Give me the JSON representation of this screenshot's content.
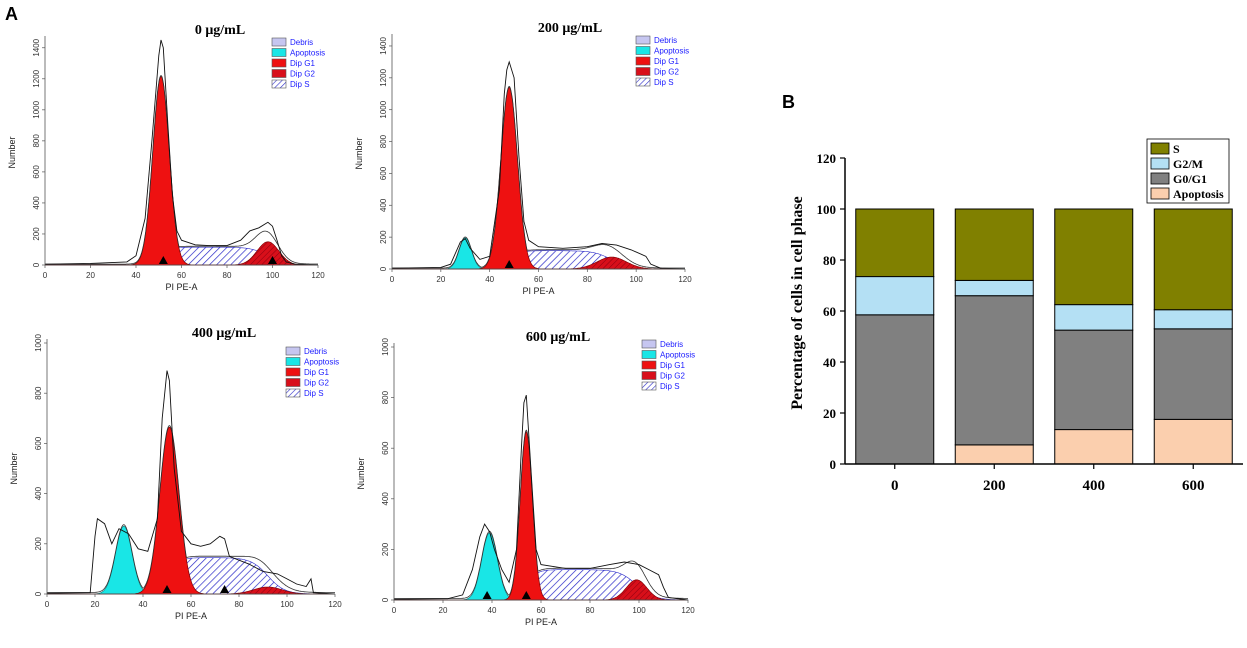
{
  "panel_labels": {
    "a": "A",
    "b": "B"
  },
  "colors": {
    "debris": "#c6c6f0",
    "apoptosis": "#19e6e6",
    "dip_g1": "#ee1111",
    "dip_g2": "#d80f1a",
    "dip_s_hatch": "#2a2ac8",
    "s": "#808000",
    "g2m": "#b4e0f4",
    "g0g1": "#808080",
    "apoptosis_bar": "#fbcfae"
  },
  "chart_data": [
    {
      "id": "h0",
      "type": "area",
      "title": "0 μg/mL",
      "xlabel": "PI PE-A",
      "ylabel": "Number",
      "xlim": [
        0,
        120
      ],
      "ylim": [
        0,
        1450
      ],
      "xticks": [
        0,
        20,
        40,
        60,
        80,
        100,
        120
      ],
      "yticks": [
        0,
        200,
        400,
        600,
        800,
        1000,
        1200,
        1400
      ],
      "legend": [
        "Debris",
        "Apoptosis",
        "Dip G1",
        "Dip G2",
        "Dip S"
      ],
      "markers": [
        52,
        100
      ],
      "apoptosis": null,
      "g1": {
        "mu": 51,
        "sigma": 3.6,
        "amp": 1215
      },
      "g2": {
        "mu": 98,
        "sigma": 4.8,
        "amp": 150
      },
      "s": {
        "from": 51,
        "to": 98,
        "amp": 115
      },
      "raw_line": [
        [
          0,
          5
        ],
        [
          20,
          10
        ],
        [
          36,
          20
        ],
        [
          40,
          60
        ],
        [
          44,
          300
        ],
        [
          47,
          800
        ],
        [
          50,
          1350
        ],
        [
          51,
          1450
        ],
        [
          52,
          1400
        ],
        [
          54,
          900
        ],
        [
          56,
          450
        ],
        [
          58,
          220
        ],
        [
          60,
          160
        ],
        [
          66,
          130
        ],
        [
          72,
          125
        ],
        [
          80,
          125
        ],
        [
          86,
          160
        ],
        [
          90,
          220
        ],
        [
          94,
          240
        ],
        [
          98,
          275
        ],
        [
          100,
          250
        ],
        [
          102,
          160
        ],
        [
          104,
          60
        ],
        [
          106,
          20
        ],
        [
          110,
          5
        ],
        [
          120,
          0
        ]
      ]
    },
    {
      "id": "h200",
      "type": "area",
      "title": "200 μg/mL",
      "xlabel": "PI PE-A",
      "ylabel": "Number",
      "xlim": [
        0,
        120
      ],
      "ylim": [
        0,
        1450
      ],
      "xticks": [
        0,
        20,
        40,
        60,
        80,
        100,
        120
      ],
      "yticks": [
        0,
        200,
        400,
        600,
        800,
        1000,
        1200,
        1400
      ],
      "legend": [
        "Debris",
        "Apoptosis",
        "Dip G1",
        "Dip G2",
        "Dip S"
      ],
      "markers": [
        48
      ],
      "apoptosis": {
        "mu": 30,
        "sigma": 2.5,
        "amp": 195
      },
      "g1": {
        "mu": 48,
        "sigma": 3.4,
        "amp": 1140
      },
      "g2": {
        "mu": 90,
        "sigma": 6.0,
        "amp": 75
      },
      "s": {
        "from": 48,
        "to": 90,
        "amp": 115
      },
      "raw_line": [
        [
          0,
          5
        ],
        [
          20,
          10
        ],
        [
          24,
          30
        ],
        [
          28,
          170
        ],
        [
          30,
          190
        ],
        [
          32,
          130
        ],
        [
          36,
          60
        ],
        [
          40,
          80
        ],
        [
          44,
          500
        ],
        [
          46,
          1100
        ],
        [
          47,
          1250
        ],
        [
          48,
          1300
        ],
        [
          50,
          1200
        ],
        [
          52,
          700
        ],
        [
          54,
          300
        ],
        [
          56,
          180
        ],
        [
          60,
          140
        ],
        [
          70,
          130
        ],
        [
          80,
          140
        ],
        [
          86,
          160
        ],
        [
          92,
          150
        ],
        [
          98,
          120
        ],
        [
          104,
          80
        ],
        [
          106,
          30
        ],
        [
          110,
          5
        ],
        [
          120,
          0
        ]
      ]
    },
    {
      "id": "h400",
      "type": "area",
      "title": "400 μg/mL",
      "xlabel": "PI PE-A",
      "ylabel": "Number",
      "xlim": [
        0,
        120
      ],
      "ylim": [
        0,
        1000
      ],
      "xticks": [
        0,
        20,
        40,
        60,
        80,
        100,
        120
      ],
      "yticks": [
        0,
        200,
        400,
        600,
        800,
        1000
      ],
      "legend": [
        "Debris",
        "Apoptosis",
        "Dip G1",
        "Dip G2",
        "Dip S"
      ],
      "markers": [
        50,
        74
      ],
      "apoptosis": {
        "mu": 32,
        "sigma": 3.4,
        "amp": 270
      },
      "g1": {
        "mu": 51,
        "sigma": 4.0,
        "amp": 665
      },
      "g2": {
        "mu": 92,
        "sigma": 6.0,
        "amp": 28
      },
      "s": {
        "from": 51,
        "to": 92,
        "amp": 145
      },
      "raw_line": [
        [
          0,
          3
        ],
        [
          18,
          5
        ],
        [
          20,
          230
        ],
        [
          21,
          300
        ],
        [
          24,
          280
        ],
        [
          27,
          200
        ],
        [
          30,
          260
        ],
        [
          34,
          240
        ],
        [
          38,
          180
        ],
        [
          42,
          170
        ],
        [
          46,
          300
        ],
        [
          48,
          700
        ],
        [
          50,
          890
        ],
        [
          51,
          850
        ],
        [
          53,
          500
        ],
        [
          56,
          250
        ],
        [
          60,
          200
        ],
        [
          64,
          190
        ],
        [
          68,
          200
        ],
        [
          72,
          230
        ],
        [
          74,
          220
        ],
        [
          76,
          150
        ],
        [
          84,
          120
        ],
        [
          90,
          90
        ],
        [
          96,
          80
        ],
        [
          100,
          60
        ],
        [
          104,
          40
        ],
        [
          108,
          30
        ],
        [
          110,
          60
        ],
        [
          111,
          5
        ],
        [
          120,
          0
        ]
      ]
    },
    {
      "id": "h600",
      "type": "area",
      "title": "600 μg/mL",
      "xlabel": "PI PE-A",
      "ylabel": "Number",
      "xlim": [
        0,
        120
      ],
      "ylim": [
        0,
        1000
      ],
      "xticks": [
        0,
        20,
        40,
        60,
        80,
        100,
        120
      ],
      "yticks": [
        0,
        200,
        400,
        600,
        800,
        1000
      ],
      "legend": [
        "Debris",
        "Apoptosis",
        "Dip G1",
        "Dip G2",
        "Dip S"
      ],
      "markers": [
        38,
        54
      ],
      "apoptosis": {
        "mu": 39,
        "sigma": 3.2,
        "amp": 265
      },
      "g1": {
        "mu": 54,
        "sigma": 2.5,
        "amp": 665
      },
      "g2": {
        "mu": 99,
        "sigma": 4.2,
        "amp": 80
      },
      "s": {
        "from": 54,
        "to": 99,
        "amp": 120
      },
      "raw_line": [
        [
          0,
          3
        ],
        [
          22,
          5
        ],
        [
          28,
          20
        ],
        [
          32,
          120
        ],
        [
          35,
          250
        ],
        [
          37,
          300
        ],
        [
          39,
          270
        ],
        [
          41,
          200
        ],
        [
          44,
          120
        ],
        [
          47,
          70
        ],
        [
          50,
          200
        ],
        [
          52,
          600
        ],
        [
          53,
          780
        ],
        [
          54,
          810
        ],
        [
          56,
          500
        ],
        [
          58,
          200
        ],
        [
          60,
          140
        ],
        [
          70,
          125
        ],
        [
          80,
          125
        ],
        [
          88,
          140
        ],
        [
          94,
          150
        ],
        [
          100,
          140
        ],
        [
          104,
          120
        ],
        [
          108,
          100
        ],
        [
          110,
          50
        ],
        [
          112,
          10
        ],
        [
          120,
          0
        ]
      ]
    },
    {
      "id": "stacked",
      "type": "bar",
      "title": "",
      "xlabel": "",
      "ylabel": "Percentage of cells in cell phase",
      "categories": [
        "0",
        "200",
        "400",
        "600"
      ],
      "ylim": [
        0,
        120
      ],
      "yticks": [
        0,
        20,
        40,
        60,
        80,
        100,
        120
      ],
      "stacked": true,
      "series": [
        {
          "name": "Apoptosis",
          "values": [
            0,
            7.5,
            13.5,
            17.5
          ]
        },
        {
          "name": "G0/G1",
          "values": [
            58.5,
            58.5,
            39,
            35.5
          ]
        },
        {
          "name": "G2/M",
          "values": [
            15,
            6,
            10,
            7.5
          ]
        },
        {
          "name": "S",
          "values": [
            26.5,
            28,
            37.5,
            39.5
          ]
        }
      ],
      "legend_order": [
        "S",
        "G2/M",
        "G0/G1",
        "Apoptosis"
      ]
    }
  ]
}
